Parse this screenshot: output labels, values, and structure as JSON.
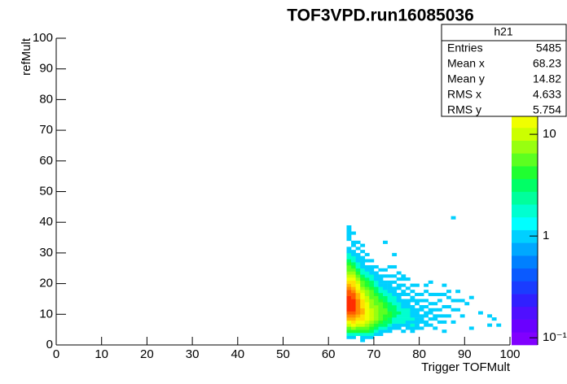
{
  "chart_data": {
    "type": "heatmap",
    "title": "TOF3VPD.run16085036",
    "x_label": "Trigger TOFMult",
    "y_label": "refMult",
    "xlim": [
      0,
      100
    ],
    "xticks": [
      0,
      10,
      20,
      30,
      40,
      50,
      60,
      70,
      80,
      90,
      100
    ],
    "ylim": [
      0,
      100
    ],
    "yticks": [
      0,
      10,
      20,
      30,
      40,
      50,
      60,
      70,
      80,
      90,
      100
    ],
    "zlim": [
      0.085,
      88
    ],
    "zscale": "log",
    "zticks": [
      {
        "value": 0.1,
        "label": "10⁻¹"
      },
      1,
      10
    ],
    "bin_size": [
      1,
      1
    ],
    "palette": [
      "#8000ff",
      "#6a00ff",
      "#4f10ff",
      "#3020ff",
      "#1a3cff",
      "#0a5aff",
      "#0080ff",
      "#00a8ff",
      "#00d0ff",
      "#00ffff",
      "#00ffd0",
      "#00ff9c",
      "#00ff66",
      "#20ff30",
      "#5cff20",
      "#98ff10",
      "#ccff00",
      "#f0ff00",
      "#ffe000",
      "#ffb400",
      "#ff8a00",
      "#ff5a00",
      "#ff2c00",
      "#ff0000"
    ],
    "columns": [
      {
        "x": 64,
        "y0": 2,
        "values": [
          1,
          2,
          4,
          6,
          10,
          15,
          22,
          30,
          40,
          50,
          55,
          58,
          55,
          50,
          45,
          38,
          30,
          24,
          18,
          14,
          10,
          8,
          6,
          5,
          4,
          3,
          2,
          2,
          1,
          1,
          null,
          null,
          1,
          1,
          1,
          1,
          1
        ]
      },
      {
        "x": 65,
        "y0": 2,
        "values": [
          1,
          2,
          4,
          7,
          12,
          18,
          26,
          36,
          46,
          54,
          56,
          54,
          50,
          44,
          38,
          32,
          26,
          20,
          16,
          12,
          9,
          7,
          5,
          4,
          3,
          2,
          2,
          1,
          1,
          null,
          1,
          1,
          null,
          null,
          1
        ]
      },
      {
        "x": 66,
        "y0": 3,
        "values": [
          2,
          4,
          6,
          9,
          14,
          20,
          26,
          32,
          36,
          36,
          34,
          30,
          26,
          22,
          18,
          15,
          12,
          9,
          7,
          5,
          4,
          3,
          2,
          2,
          1,
          1,
          1,
          null,
          1,
          null,
          1
        ]
      },
      {
        "x": 67,
        "y0": 1,
        "values": [
          1,
          1,
          2,
          4,
          6,
          9,
          12,
          16,
          20,
          22,
          22,
          20,
          18,
          16,
          14,
          12,
          10,
          8,
          6,
          5,
          4,
          3,
          2,
          2,
          1,
          1,
          1,
          1,
          null,
          1,
          null,
          1
        ]
      },
      {
        "x": 68,
        "y0": 2,
        "values": [
          1,
          2,
          4,
          6,
          8,
          10,
          13,
          15,
          15,
          14,
          13,
          12,
          10,
          9,
          8,
          7,
          5,
          4,
          4,
          3,
          2,
          2,
          1,
          1,
          null,
          1,
          null,
          1
        ]
      },
      {
        "x": 69,
        "y0": 2,
        "values": [
          1,
          2,
          3,
          4,
          6,
          8,
          9,
          10,
          10,
          9,
          8,
          8,
          7,
          6,
          5,
          5,
          4,
          3,
          3,
          2,
          2,
          1,
          1,
          1,
          null,
          1
        ]
      },
      {
        "x": 70,
        "y0": 3,
        "values": [
          1,
          2,
          3,
          4,
          6,
          7,
          8,
          8,
          7,
          7,
          6,
          5,
          5,
          4,
          3,
          3,
          2,
          2,
          1,
          1,
          1,
          null,
          1
        ]
      },
      {
        "x": 71,
        "y0": 3,
        "values": [
          1,
          1,
          2,
          3,
          4,
          5,
          6,
          6,
          5,
          5,
          5,
          4,
          3,
          3,
          2,
          2,
          1,
          1,
          1,
          1,
          null,
          1
        ]
      },
      {
        "x": 72,
        "y0": 4,
        "values": [
          1,
          2,
          3,
          3,
          4,
          4,
          5,
          5,
          4,
          4,
          3,
          3,
          2,
          2,
          1,
          1,
          1,
          null,
          1,
          null,
          1,
          null,
          null,
          null,
          null,
          null,
          null,
          null,
          null,
          1
        ]
      },
      {
        "x": 73,
        "y0": 4,
        "values": [
          1,
          1,
          2,
          3,
          3,
          4,
          4,
          3,
          3,
          3,
          2,
          2,
          2,
          1,
          1,
          1,
          1,
          null,
          1,
          null,
          null,
          1
        ]
      },
      {
        "x": 74,
        "y0": 5,
        "values": [
          1,
          1,
          2,
          2,
          3,
          3,
          3,
          3,
          2,
          2,
          2,
          1,
          1,
          1,
          null,
          1,
          null,
          1,
          null,
          null,
          1,
          null,
          null,
          null,
          1
        ]
      },
      {
        "x": 75,
        "y0": 5,
        "values": [
          1,
          1,
          2,
          2,
          2,
          3,
          2,
          2,
          2,
          1,
          1,
          1,
          null,
          1,
          1,
          null,
          1,
          null,
          1
        ]
      },
      {
        "x": 76,
        "y0": 4,
        "values": [
          1,
          null,
          1,
          2,
          2,
          2,
          2,
          2,
          1,
          1,
          1,
          null,
          1,
          1,
          null,
          1,
          null,
          1,
          1
        ]
      },
      {
        "x": 77,
        "y0": 5,
        "values": [
          1,
          1,
          1,
          2,
          2,
          2,
          2,
          1,
          1,
          1,
          null,
          1,
          null,
          1,
          null,
          null,
          1
        ]
      },
      {
        "x": 78,
        "y0": 4,
        "values": [
          1,
          1,
          2,
          1,
          2,
          1,
          1,
          1,
          1,
          null,
          1,
          1,
          null,
          1,
          null,
          1
        ]
      },
      {
        "x": 79,
        "y0": 5,
        "values": [
          1,
          1,
          1,
          1,
          1,
          1,
          1,
          null,
          1,
          1,
          null,
          1,
          null,
          null,
          1
        ]
      },
      {
        "x": 80,
        "y0": 5,
        "values": [
          1,
          null,
          1,
          1,
          1,
          null,
          1,
          1,
          null,
          1,
          null,
          1
        ]
      },
      {
        "x": 81,
        "y0": 6,
        "values": [
          1,
          1,
          null,
          1,
          1,
          null,
          1,
          null,
          1,
          null,
          null,
          1,
          null,
          1
        ]
      },
      {
        "x": 82,
        "y0": 6,
        "values": [
          1,
          null,
          1,
          null,
          1,
          1,
          null,
          1,
          null,
          null,
          1,
          null,
          null,
          null,
          1
        ]
      },
      {
        "x": 83,
        "y0": 5,
        "values": [
          1,
          null,
          null,
          1,
          1,
          null,
          1,
          null,
          1,
          null,
          null,
          1
        ]
      },
      {
        "x": 84,
        "y0": 7,
        "values": [
          1,
          null,
          1,
          null,
          1,
          null,
          null,
          1,
          null,
          1
        ]
      },
      {
        "x": 85,
        "y0": 4,
        "values": [
          1,
          null,
          null,
          1,
          null,
          1,
          null,
          null,
          1,
          null,
          null,
          null,
          1,
          null,
          null,
          1
        ]
      },
      {
        "x": 86,
        "y0": 9,
        "values": [
          1,
          null,
          null,
          1,
          null,
          null,
          1,
          null,
          1
        ]
      },
      {
        "x": 87,
        "y0": 7,
        "values": [
          1,
          null,
          null,
          null,
          1,
          null,
          null,
          1,
          null,
          null,
          null,
          null,
          null,
          null,
          null,
          null,
          null,
          null,
          null,
          null,
          null,
          null,
          null,
          null,
          null,
          null,
          null,
          null,
          null,
          null,
          null,
          null,
          null,
          null,
          1
        ]
      },
      {
        "x": 88,
        "y0": 11,
        "values": [
          1,
          null,
          null,
          1,
          null,
          null,
          1
        ]
      },
      {
        "x": 89,
        "y0": 9,
        "values": [
          1,
          null,
          null,
          null,
          null,
          1
        ]
      },
      {
        "x": 90,
        "y0": 13,
        "values": [
          1
        ]
      },
      {
        "x": 91,
        "y0": 5,
        "values": [
          1,
          null,
          null,
          null,
          null,
          null,
          null,
          null,
          null,
          null,
          1
        ]
      },
      {
        "x": 93,
        "y0": 10,
        "values": [
          1
        ]
      },
      {
        "x": 95,
        "y0": 6,
        "values": [
          1,
          null,
          null,
          1
        ]
      },
      {
        "x": 96,
        "y0": 8,
        "values": [
          1
        ]
      },
      {
        "x": 97,
        "y0": 6,
        "values": [
          1
        ]
      }
    ],
    "stats": {
      "title": "h21",
      "rows": [
        {
          "label": "Entries",
          "value": 5485
        },
        {
          "label": "Mean x",
          "value": 68.23
        },
        {
          "label": "Mean y",
          "value": 14.82
        },
        {
          "label": "RMS x",
          "value": 4.633
        },
        {
          "label": "RMS y",
          "value": 5.754
        }
      ]
    }
  }
}
